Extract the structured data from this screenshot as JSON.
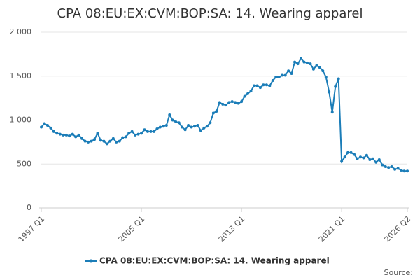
{
  "chart_data": {
    "type": "line",
    "title": "CPA 08:EU:EX:CVM:BOP:SA: 14. Wearing apparel",
    "source": "Source:",
    "categories": [
      "1997 Q1",
      null,
      null,
      null,
      null,
      null,
      null,
      null,
      null,
      null,
      null,
      null,
      null,
      null,
      null,
      null,
      null,
      null,
      null,
      null,
      null,
      null,
      null,
      null,
      null,
      null,
      null,
      null,
      null,
      null,
      null,
      null,
      "2005 Q1",
      null,
      null,
      null,
      null,
      null,
      null,
      null,
      null,
      null,
      null,
      null,
      null,
      null,
      null,
      null,
      null,
      null,
      null,
      null,
      null,
      null,
      null,
      null,
      null,
      null,
      null,
      null,
      null,
      null,
      null,
      null,
      "2013 Q1",
      null,
      null,
      null,
      null,
      null,
      null,
      null,
      null,
      null,
      null,
      null,
      null,
      null,
      null,
      null,
      null,
      null,
      null,
      null,
      null,
      null,
      null,
      null,
      null,
      null,
      null,
      null,
      null,
      null,
      null,
      null,
      "2021 Q1",
      null,
      null,
      null,
      null,
      null,
      null,
      null,
      null,
      null,
      null,
      null,
      null,
      null,
      null,
      null,
      null,
      null,
      null,
      null,
      null,
      "2026 Q2"
    ],
    "series": [
      {
        "name": "CPA 08:EU:EX:CVM:BOP:SA: 14. Wearing apparel",
        "color": "#1b7db8",
        "values": [
          920,
          960,
          940,
          910,
          870,
          850,
          840,
          830,
          830,
          820,
          840,
          810,
          830,
          790,
          760,
          750,
          760,
          780,
          850,
          770,
          760,
          730,
          760,
          790,
          750,
          760,
          800,
          810,
          850,
          870,
          830,
          840,
          850,
          890,
          870,
          870,
          870,
          900,
          920,
          930,
          940,
          1060,
          1000,
          980,
          970,
          920,
          890,
          940,
          920,
          930,
          940,
          880,
          910,
          930,
          970,
          1080,
          1100,
          1200,
          1180,
          1170,
          1200,
          1210,
          1200,
          1190,
          1210,
          1270,
          1300,
          1330,
          1390,
          1390,
          1370,
          1400,
          1400,
          1390,
          1450,
          1490,
          1490,
          1510,
          1510,
          1560,
          1530,
          1660,
          1640,
          1700,
          1660,
          1650,
          1640,
          1580,
          1620,
          1600,
          1560,
          1490,
          1320,
          1090,
          1380,
          1470,
          530,
          580,
          630,
          630,
          610,
          560,
          580,
          570,
          600,
          550,
          560,
          520,
          550,
          490,
          470,
          460,
          470,
          440,
          450,
          430,
          420,
          420
        ]
      }
    ],
    "ylim": [
      0,
      2000
    ],
    "yticks": [
      0,
      500,
      {
        "value": 1000,
        "label": "1 000"
      },
      {
        "value": 1500,
        "label": "1 500"
      },
      {
        "value": 2000,
        "label": "2 000"
      }
    ],
    "grid": true
  }
}
